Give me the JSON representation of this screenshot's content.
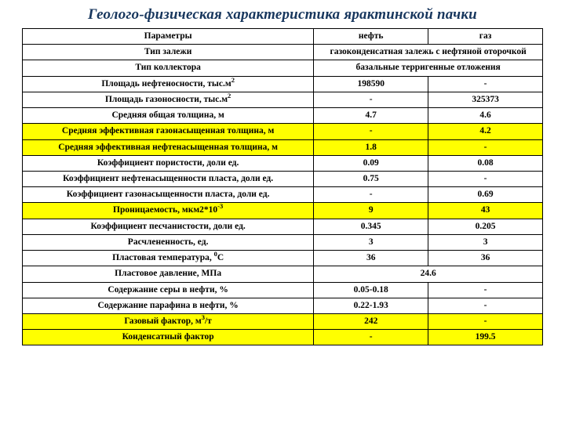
{
  "title": "Геолого-физическая характеристика ярактинской пачки",
  "table": {
    "columns": [
      "Параметры",
      "нефть",
      "газ"
    ],
    "column_widths_pct": [
      56,
      22,
      22
    ],
    "border_color": "#000000",
    "highlight_color": "#ffff00",
    "background_color": "#ffffff",
    "header_fontsize": 11.5,
    "body_fontsize": 11.5,
    "rows": [
      {
        "label": "Тип залежи",
        "span": "газоконденсатная залежь с нефтяной оторочкой",
        "highlight": false
      },
      {
        "label": "Тип коллектора",
        "span": "базальные терригенные отложения",
        "highlight": false
      },
      {
        "label_html": "Площадь нефтеносности, тыс.м<span class=\"sup\">2</span>",
        "oil": "198590",
        "gas": "-",
        "highlight": false
      },
      {
        "label_html": "Площадь газоносности, тыс.м<span class=\"sup\">2</span>",
        "oil": "-",
        "gas": "325373",
        "highlight": false
      },
      {
        "label": "Средняя общая толщина, м",
        "oil": "4.7",
        "gas": "4.6",
        "highlight": false
      },
      {
        "label": "Средняя эффективная газонасыщенная толщина, м",
        "oil": "-",
        "gas": "4.2",
        "highlight": true
      },
      {
        "label": "Средняя эффективная нефтенасыщенная толщина, м",
        "oil": "1.8",
        "gas": "-",
        "highlight": true
      },
      {
        "label": "Коэффициент пористости, доли ед.",
        "oil": "0.09",
        "gas": "0.08",
        "highlight": false
      },
      {
        "label": "Коэффициент нефтенасыщенности пласта, доли ед.",
        "oil": "0.75",
        "gas": "-",
        "highlight": false
      },
      {
        "label": "Коэффициент газонасыщенности пласта, доли ед.",
        "oil": "-",
        "gas": "0.69",
        "highlight": false
      },
      {
        "label_html": "Проницаемость, мкм2*10<span class=\"sup\">-3</span>",
        "oil": "9",
        "gas": "43",
        "highlight": true
      },
      {
        "label": "Коэффициент песчанистости, доли ед.",
        "oil": "0.345",
        "gas": "0.205",
        "highlight": false
      },
      {
        "label": "Расчлененность, ед.",
        "oil": "3",
        "gas": "3",
        "highlight": false
      },
      {
        "label_html": "Пластовая температура, <span class=\"sup\">0</span>С",
        "oil": "36",
        "gas": "36",
        "highlight": false
      },
      {
        "label": "Пластовое давление, МПа",
        "span": "24.6",
        "highlight": false
      },
      {
        "label": "Содержание серы в нефти, %",
        "oil": "0.05-0.18",
        "gas": "-",
        "highlight": false
      },
      {
        "label": "Содержание парафина в нефти, %",
        "oil": "0.22-1.93",
        "gas": "-",
        "highlight": false
      },
      {
        "label_html": "Газовый фактор, м<span class=\"sup\">3</span>/т",
        "oil": "242",
        "gas": "-",
        "highlight": true
      },
      {
        "label": "Конденсатный фактор",
        "oil": "-",
        "gas": "199.5",
        "highlight": true
      }
    ]
  }
}
